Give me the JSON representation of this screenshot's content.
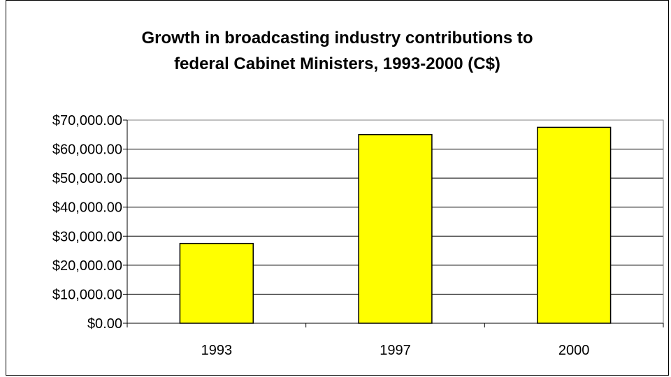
{
  "chart_data": {
    "type": "bar",
    "title_lines": [
      "Growth in broadcasting industry contributions to",
      "federal Cabinet Ministers, 1993-2000 (C$)"
    ],
    "categories": [
      "1993",
      "1997",
      "2000"
    ],
    "values": [
      27500,
      65000,
      67500
    ],
    "ylim": [
      0,
      70000
    ],
    "yticks": [
      0,
      10000,
      20000,
      30000,
      40000,
      50000,
      60000,
      70000
    ],
    "ytick_labels": [
      "$0.00",
      "$10,000.00",
      "$20,000.00",
      "$30,000.00",
      "$40,000.00",
      "$50,000.00",
      "$60,000.00",
      "$70,000.00"
    ],
    "grid": true,
    "bar_color": "#ffff00",
    "bar_edge_color": "#000000",
    "plot_background": "#ffffff"
  }
}
